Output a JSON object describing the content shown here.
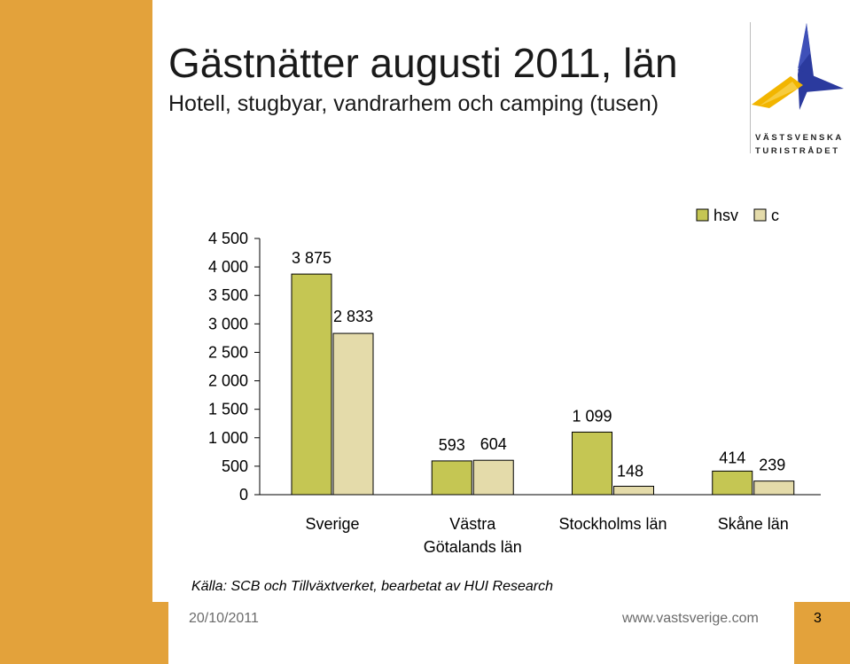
{
  "title": "Gästnätter augusti 2011, län",
  "subtitle": "Hotell, stugbyar, vandrarhem och camping (tusen)",
  "logo": {
    "line1": "VÄSTSVENSKA",
    "line2": "TURISTRÅDET",
    "icon": "star-compass-logo"
  },
  "source": "Källa: SCB och Tillväxtverket, bearbetat av HUI Research",
  "footer": {
    "date": "20/10/2011",
    "url": "www.vastsverige.com",
    "page": "3"
  },
  "colors": {
    "accent": "#e3a23b",
    "hsv": "#c5c653",
    "c": "#e4dbaa",
    "logo_blue": "#2b3a9e",
    "logo_yellow": "#f2b500"
  },
  "chart_data": {
    "type": "bar",
    "categories": [
      "Sverige",
      "Västra Götalands län",
      "Stockholms län",
      "Skåne län"
    ],
    "category_lines": [
      [
        "Sverige"
      ],
      [
        "Västra",
        "Götalands län"
      ],
      [
        "Stockholms län"
      ],
      [
        "Skåne län"
      ]
    ],
    "series": [
      {
        "name": "hsv",
        "values": [
          3875,
          593,
          1099,
          414
        ],
        "labels": [
          "3 875",
          "593",
          "1 099",
          "414"
        ]
      },
      {
        "name": "c",
        "values": [
          2833,
          604,
          148,
          239
        ],
        "labels": [
          "2 833",
          "604",
          "148",
          "239"
        ]
      }
    ],
    "ylim": [
      0,
      4500
    ],
    "yticks": [
      0,
      500,
      1000,
      1500,
      2000,
      2500,
      3000,
      3500,
      4000,
      4500
    ],
    "ytick_labels": [
      "0",
      "500",
      "1 000",
      "1 500",
      "2 000",
      "2 500",
      "3 000",
      "3 500",
      "4 000",
      "4 500"
    ],
    "grid": false,
    "legend": "top-right"
  }
}
